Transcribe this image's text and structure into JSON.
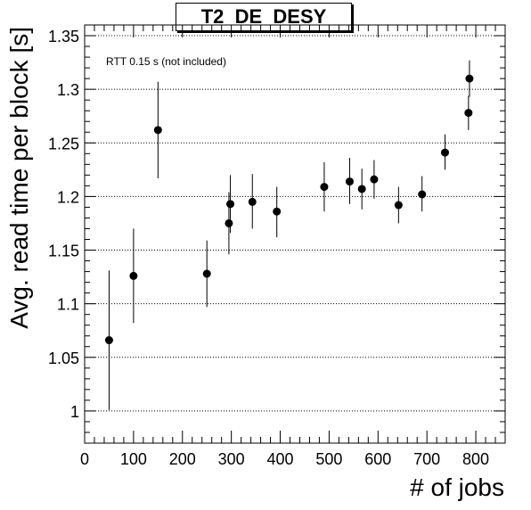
{
  "chart_data": {
    "type": "scatter",
    "title": "T2_DE_DESY",
    "annotation": "RTT 0.15 s (not included)",
    "xlabel": "# of jobs",
    "ylabel": "Avg. read time per block [s]",
    "xlim": [
      0,
      860
    ],
    "ylim": [
      0.97,
      1.36
    ],
    "x_ticks": [
      0,
      100,
      200,
      300,
      400,
      500,
      600,
      700,
      800
    ],
    "y_ticks": [
      1,
      1.05,
      1.1,
      1.15,
      1.2,
      1.25,
      1.3,
      1.35
    ],
    "grid": "horizontal dotted",
    "points": [
      {
        "x": 50,
        "y": 1.066,
        "err_low": 1.001,
        "err_high": 1.131
      },
      {
        "x": 100,
        "y": 1.126,
        "err_low": 1.082,
        "err_high": 1.17
      },
      {
        "x": 150,
        "y": 1.262,
        "err_low": 1.217,
        "err_high": 1.307
      },
      {
        "x": 250,
        "y": 1.128,
        "err_low": 1.097,
        "err_high": 1.159
      },
      {
        "x": 295,
        "y": 1.175,
        "err_low": 1.146,
        "err_high": 1.204
      },
      {
        "x": 298,
        "y": 1.193,
        "err_low": 1.166,
        "err_high": 1.22
      },
      {
        "x": 343,
        "y": 1.195,
        "err_low": 1.17,
        "err_high": 1.221
      },
      {
        "x": 393,
        "y": 1.186,
        "err_low": 1.162,
        "err_high": 1.209
      },
      {
        "x": 490,
        "y": 1.209,
        "err_low": 1.186,
        "err_high": 1.232
      },
      {
        "x": 542,
        "y": 1.214,
        "err_low": 1.193,
        "err_high": 1.236
      },
      {
        "x": 567,
        "y": 1.207,
        "err_low": 1.188,
        "err_high": 1.226
      },
      {
        "x": 592,
        "y": 1.216,
        "err_low": 1.198,
        "err_high": 1.234
      },
      {
        "x": 642,
        "y": 1.192,
        "err_low": 1.175,
        "err_high": 1.209
      },
      {
        "x": 690,
        "y": 1.202,
        "err_low": 1.186,
        "err_high": 1.219
      },
      {
        "x": 737,
        "y": 1.241,
        "err_low": 1.225,
        "err_high": 1.258
      },
      {
        "x": 785,
        "y": 1.278,
        "err_low": 1.262,
        "err_high": 1.294
      },
      {
        "x": 787,
        "y": 1.31,
        "err_low": 1.293,
        "err_high": 1.327
      }
    ]
  }
}
